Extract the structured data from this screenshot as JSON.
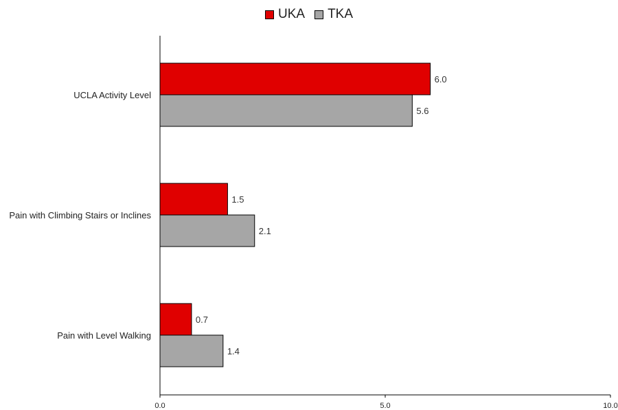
{
  "chart_data": {
    "type": "bar",
    "orientation": "horizontal",
    "categories": [
      "UCLA  Activity Level",
      "Pain with Climbing Stairs or Inclines",
      "Pain with Level Walking"
    ],
    "series": [
      {
        "name": "UKA",
        "color": "#e00000",
        "values": [
          6.0,
          1.5,
          0.7
        ],
        "labels": [
          "6.0",
          "1.5",
          "0.7"
        ]
      },
      {
        "name": "TKA",
        "color": "#a6a6a6",
        "values": [
          5.6,
          2.1,
          1.4
        ],
        "labels": [
          "5.6",
          "2.1",
          "1.4"
        ]
      }
    ],
    "xlim": [
      0,
      10
    ],
    "xticks": [
      0,
      5,
      10
    ],
    "xtick_labels": [
      "0.0",
      "5.0",
      "10.0"
    ],
    "legend": "top-center",
    "grid": false
  }
}
